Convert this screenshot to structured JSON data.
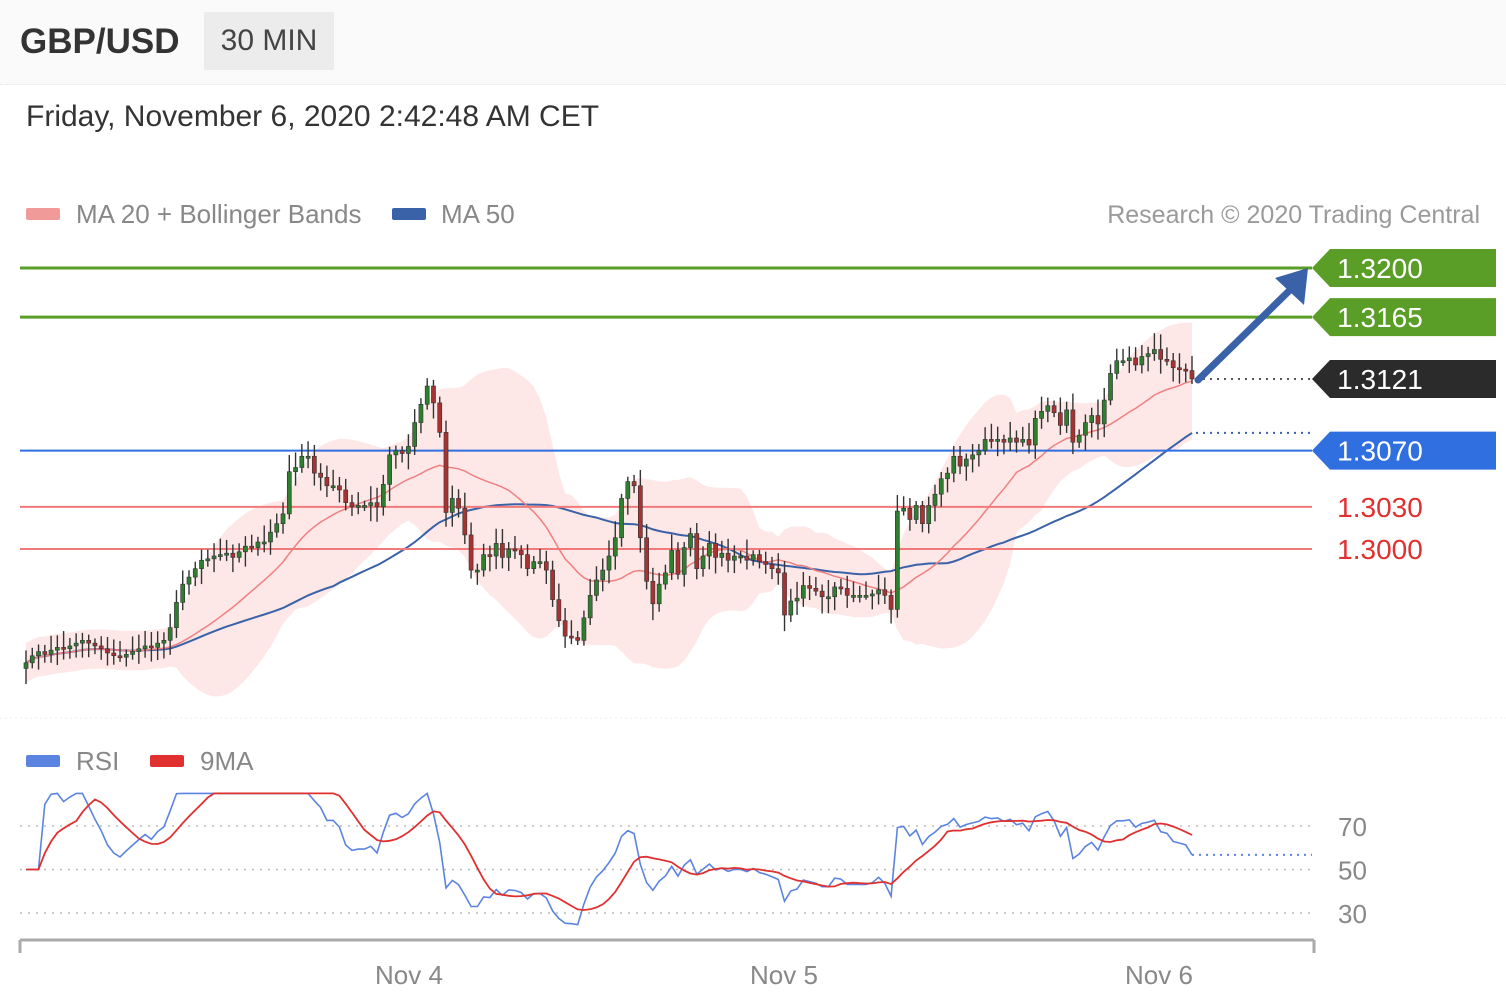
{
  "header": {
    "symbol": "GBP/USD",
    "timeframe": "30 MIN",
    "datetime": "Friday, November 6, 2020 2:42:48 AM CET"
  },
  "legend": {
    "ma20": "MA 20 + Bollinger Bands",
    "ma50": "MA 50",
    "rsi": "RSI",
    "rsi_ma": "9MA",
    "copyright": "Research © 2020 Trading Central"
  },
  "colors": {
    "resistance": "#5a9e27",
    "pivot": "#2f6fe0",
    "support": "#f07a7a",
    "current": "#2b2b2b",
    "ma20": "#f08080",
    "ma50": "#3a62a8",
    "band": "#fde3e3",
    "candle_up": "#2f7d2f",
    "candle_down": "#a83232",
    "rsi": "#5b84e0",
    "rsi_ma": "#e03030",
    "arrow": "#3a62a8"
  },
  "chart_data": [
    {
      "type": "line",
      "panel": "price",
      "x_ticks": [
        "Nov 4",
        "Nov 5",
        "Nov 6"
      ],
      "levels": [
        {
          "label": "1.3200",
          "value": 1.32,
          "kind": "resistance"
        },
        {
          "label": "1.3165",
          "value": 1.3165,
          "kind": "resistance"
        },
        {
          "label": "1.3121",
          "value": 1.3121,
          "kind": "current"
        },
        {
          "label": "1.3070",
          "value": 1.307,
          "kind": "pivot"
        },
        {
          "label": "1.3030",
          "value": 1.303,
          "kind": "support"
        },
        {
          "label": "1.3000",
          "value": 1.3,
          "kind": "support"
        }
      ],
      "close": [
        1.2919,
        1.2924,
        1.2927,
        1.2925,
        1.2928,
        1.293,
        1.2929,
        1.2931,
        1.2933,
        1.2935,
        1.2933,
        1.2931,
        1.2929,
        1.2926,
        1.2924,
        1.2923,
        1.2925,
        1.2927,
        1.2929,
        1.2931,
        1.293,
        1.2933,
        1.2935,
        1.2944,
        1.2962,
        1.2975,
        1.298,
        1.2986,
        1.2992,
        1.2993,
        1.2995,
        1.2996,
        1.2997,
        1.2994,
        1.2998,
        1.3002,
        1.3001,
        1.3005,
        1.3005,
        1.3012,
        1.3018,
        1.3025,
        1.3055,
        1.3058,
        1.3066,
        1.3066,
        1.3054,
        1.3051,
        1.3045,
        1.3045,
        1.3042,
        1.3033,
        1.303,
        1.3031,
        1.3031,
        1.3033,
        1.303,
        1.3046,
        1.3067,
        1.307,
        1.3068,
        1.3073,
        1.309,
        1.3103,
        1.3116,
        1.3104,
        1.3083,
        1.3026,
        1.3036,
        1.3029,
        1.301,
        1.2985,
        1.2985,
        1.2996,
        1.2995,
        1.3004,
        1.2994,
        1.3,
        1.2999,
        1.2996,
        1.2986,
        1.2991,
        1.2991,
        1.2985,
        1.2964,
        1.2949,
        1.2938,
        1.2937,
        1.2935,
        1.2951,
        1.2967,
        1.2978,
        1.2985,
        1.2995,
        1.3008,
        1.3036,
        1.3048,
        1.3045,
        1.3008,
        1.2977,
        1.2961,
        1.2975,
        1.2983,
        1.2999,
        1.2982,
        1.3001,
        1.3011,
        1.2986,
        1.2995,
        1.3004,
        1.2994,
        1.2997,
        1.2992,
        1.2995,
        1.2995,
        1.2992,
        1.2996,
        1.2991,
        1.2989,
        1.2986,
        1.2983,
        1.2953,
        1.2963,
        1.2965,
        1.2974,
        1.2972,
        1.297,
        1.2966,
        1.2966,
        1.2973,
        1.2972,
        1.2967,
        1.2967,
        1.2967,
        1.2967,
        1.2968,
        1.2971,
        1.2967,
        1.2957,
        1.3027,
        1.3029,
        1.3021,
        1.3031,
        1.3018,
        1.3031,
        1.3039,
        1.305,
        1.3054,
        1.3066,
        1.3059,
        1.3064,
        1.3067,
        1.307,
        1.3078,
        1.3077,
        1.3078,
        1.3076,
        1.3079,
        1.3076,
        1.3078,
        1.3074,
        1.3093,
        1.3098,
        1.3102,
        1.3097,
        1.3088,
        1.3099,
        1.3076,
        1.3081,
        1.309,
        1.3095,
        1.3089,
        1.3106,
        1.3125,
        1.3134,
        1.3134,
        1.3136,
        1.3131,
        1.3137,
        1.3139,
        1.3142,
        1.3135,
        1.3134,
        1.3129,
        1.3128,
        1.3127,
        1.3121
      ]
    },
    {
      "type": "line",
      "panel": "rsi",
      "y_ticks": [
        70,
        50,
        30
      ],
      "x_ticks": [
        "Nov 4",
        "Nov 5",
        "Nov 6"
      ]
    }
  ]
}
